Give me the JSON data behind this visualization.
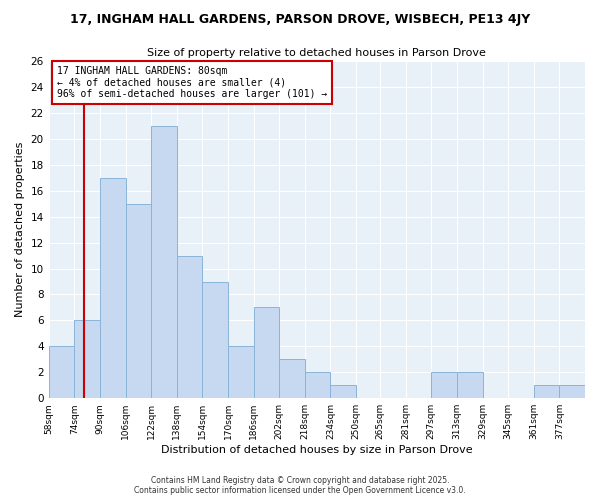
{
  "title": "17, INGHAM HALL GARDENS, PARSON DROVE, WISBECH, PE13 4JY",
  "subtitle": "Size of property relative to detached houses in Parson Drove",
  "xlabel": "Distribution of detached houses by size in Parson Drove",
  "ylabel": "Number of detached properties",
  "bin_labels": [
    "58sqm",
    "74sqm",
    "90sqm",
    "106sqm",
    "122sqm",
    "138sqm",
    "154sqm",
    "170sqm",
    "186sqm",
    "202sqm",
    "218sqm",
    "234sqm",
    "250sqm",
    "265sqm",
    "281sqm",
    "297sqm",
    "313sqm",
    "329sqm",
    "345sqm",
    "361sqm",
    "377sqm"
  ],
  "bar_heights": [
    4,
    6,
    17,
    15,
    21,
    11,
    9,
    4,
    7,
    3,
    2,
    1,
    0,
    0,
    0,
    2,
    2,
    0,
    0,
    1,
    1
  ],
  "bar_color": "#c6d9f0",
  "bar_edge_color": "#8ab4d8",
  "ylim": [
    0,
    26
  ],
  "yticks": [
    0,
    2,
    4,
    6,
    8,
    10,
    12,
    14,
    16,
    18,
    20,
    22,
    24,
    26
  ],
  "property_line_x": 80,
  "bin_edges": [
    58,
    74,
    90,
    106,
    122,
    138,
    154,
    170,
    186,
    202,
    218,
    234,
    250,
    265,
    281,
    297,
    313,
    329,
    345,
    361,
    377,
    393
  ],
  "annotation_title": "17 INGHAM HALL GARDENS: 80sqm",
  "annotation_line1": "← 4% of detached houses are smaller (4)",
  "annotation_line2": "96% of semi-detached houses are larger (101) →",
  "annotation_box_edge": "#cc0000",
  "property_line_color": "#cc0000",
  "footer1": "Contains HM Land Registry data © Crown copyright and database right 2025.",
  "footer2": "Contains public sector information licensed under the Open Government Licence v3.0.",
  "background_color": "#ffffff",
  "plot_bg_color": "#e8f0f8",
  "grid_color": "#ffffff"
}
